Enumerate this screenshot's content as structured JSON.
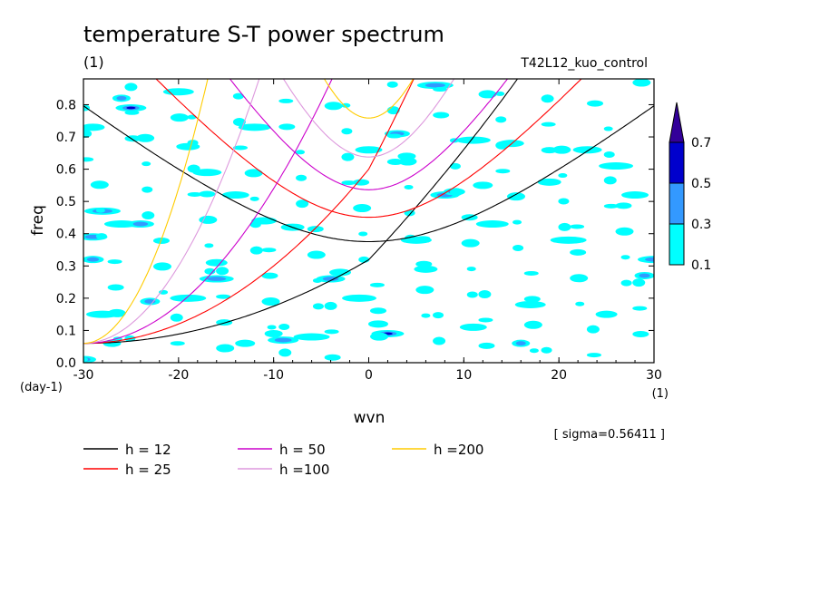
{
  "chart_data": {
    "type": "heatmap",
    "title": "temperature S-T power spectrum",
    "subtitle_left": "(1)",
    "subtitle_right": "T42L12_kuo_control",
    "xlabel": "wvn",
    "xunit": "(1)",
    "ylabel": "freq",
    "yunit": "(day-1)",
    "xlim": [
      -30,
      30
    ],
    "ylim": [
      0,
      0.88
    ],
    "xticks": [
      "-30",
      "-20",
      "-10",
      "0",
      "10",
      "20",
      "30"
    ],
    "yticks": [
      "0.0",
      "0.1",
      "0.2",
      "0.3",
      "0.4",
      "0.5",
      "0.6",
      "0.7",
      "0.8"
    ],
    "sigma_text": "[ sigma=0.56411 ]",
    "colorbar": {
      "levels": [
        "0.1",
        "0.3",
        "0.5",
        "0.7"
      ],
      "colors": [
        "#00ffff",
        "#3399ff",
        "#0000cc",
        "#330099"
      ]
    },
    "shaded_blobs": [
      {
        "x": -26,
        "y": 0.82,
        "level": 2
      },
      {
        "x": -25,
        "y": 0.79,
        "level": 3
      },
      {
        "x": -29,
        "y": 0.73,
        "level": 1
      },
      {
        "x": -28,
        "y": 0.47,
        "level": 2
      },
      {
        "x": -29,
        "y": 0.39,
        "level": 2
      },
      {
        "x": -29,
        "y": 0.32,
        "level": 2
      },
      {
        "x": -26,
        "y": 0.43,
        "level": 1
      },
      {
        "x": -24,
        "y": 0.43,
        "level": 2
      },
      {
        "x": -23,
        "y": 0.19,
        "level": 2
      },
      {
        "x": -28,
        "y": 0.15,
        "level": 1
      },
      {
        "x": -30,
        "y": 0.01,
        "level": 2
      },
      {
        "x": -27,
        "y": 0.06,
        "level": 1
      },
      {
        "x": -20,
        "y": 0.84,
        "level": 1
      },
      {
        "x": -19,
        "y": 0.67,
        "level": 1
      },
      {
        "x": -19,
        "y": 0.2,
        "level": 1
      },
      {
        "x": -17,
        "y": 0.59,
        "level": 1
      },
      {
        "x": -16,
        "y": 0.31,
        "level": 1
      },
      {
        "x": -16,
        "y": 0.26,
        "level": 2
      },
      {
        "x": -14,
        "y": 0.52,
        "level": 1
      },
      {
        "x": -13,
        "y": 0.06,
        "level": 1
      },
      {
        "x": -12,
        "y": 0.73,
        "level": 1
      },
      {
        "x": -11,
        "y": 0.44,
        "level": 1
      },
      {
        "x": -10,
        "y": 0.09,
        "level": 1
      },
      {
        "x": -9,
        "y": 0.07,
        "level": 2
      },
      {
        "x": -8,
        "y": 0.42,
        "level": 1
      },
      {
        "x": -6,
        "y": 0.08,
        "level": 1
      },
      {
        "x": -4,
        "y": 0.26,
        "level": 2
      },
      {
        "x": -3,
        "y": 0.28,
        "level": 1
      },
      {
        "x": -1,
        "y": 0.2,
        "level": 1
      },
      {
        "x": 0,
        "y": 0.66,
        "level": 1
      },
      {
        "x": 1,
        "y": 0.12,
        "level": 1
      },
      {
        "x": 2,
        "y": 0.09,
        "level": 3
      },
      {
        "x": 3,
        "y": 0.71,
        "level": 2
      },
      {
        "x": 4,
        "y": 0.64,
        "level": 1
      },
      {
        "x": 5,
        "y": 0.38,
        "level": 1
      },
      {
        "x": 6,
        "y": 0.29,
        "level": 1
      },
      {
        "x": 7,
        "y": 0.86,
        "level": 2
      },
      {
        "x": 8,
        "y": 0.52,
        "level": 2
      },
      {
        "x": 9,
        "y": 0.53,
        "level": 3
      },
      {
        "x": 11,
        "y": 0.69,
        "level": 1
      },
      {
        "x": 11,
        "y": 0.11,
        "level": 1
      },
      {
        "x": 12,
        "y": 0.55,
        "level": 1
      },
      {
        "x": 13,
        "y": 0.43,
        "level": 1
      },
      {
        "x": 15,
        "y": 0.68,
        "level": 1
      },
      {
        "x": 16,
        "y": 0.06,
        "level": 2
      },
      {
        "x": 17,
        "y": 0.18,
        "level": 1
      },
      {
        "x": 19,
        "y": 0.56,
        "level": 1
      },
      {
        "x": 21,
        "y": 0.38,
        "level": 1
      },
      {
        "x": 23,
        "y": 0.66,
        "level": 1
      },
      {
        "x": 25,
        "y": 0.15,
        "level": 1
      },
      {
        "x": 26,
        "y": 0.61,
        "level": 1
      },
      {
        "x": 28,
        "y": 0.52,
        "level": 1
      },
      {
        "x": 29,
        "y": 0.27,
        "level": 2
      },
      {
        "x": 30,
        "y": 0.32,
        "level": 2
      }
    ],
    "series": [
      {
        "name": "h = 12",
        "color": "#000000",
        "h": 12
      },
      {
        "name": "h = 25",
        "color": "#ff0000",
        "h": 25
      },
      {
        "name": "h = 50",
        "color": "#cc00cc",
        "h": 50
      },
      {
        "name": "h =100",
        "color": "#dd99dd",
        "h": 100
      },
      {
        "name": "h =200",
        "color": "#ffcc00",
        "h": 200
      }
    ]
  }
}
